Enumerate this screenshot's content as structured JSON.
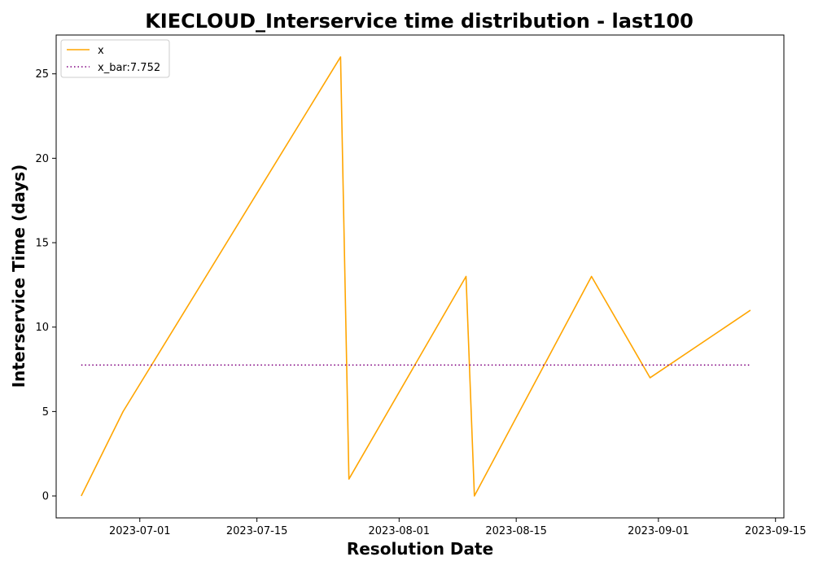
{
  "chart_data": {
    "type": "line",
    "title": "KIECLOUD_Interservice time distribution - last100",
    "xlabel": "Resolution Date",
    "ylabel": "Interservice Time (days)",
    "x_ticks": [
      "2023-07-01",
      "2023-07-15",
      "2023-08-01",
      "2023-08-15",
      "2023-09-01",
      "2023-09-15"
    ],
    "y_ticks": [
      "0",
      "5",
      "10",
      "15",
      "20",
      "25"
    ],
    "xlim": [
      "2023-06-21",
      "2023-09-16"
    ],
    "ylim": [
      -1.3,
      27.3
    ],
    "grid": false,
    "legend_position": "top-left",
    "series": [
      {
        "name": "x",
        "color": "#ffa500",
        "style": "solid",
        "x": [
          "2023-06-24",
          "2023-06-29",
          "2023-07-25",
          "2023-07-26",
          "2023-08-09",
          "2023-08-10",
          "2023-08-24",
          "2023-08-31",
          "2023-09-12"
        ],
        "y": [
          0,
          5,
          26,
          1,
          13,
          0,
          13,
          7,
          11
        ]
      },
      {
        "name": "x_bar:7.752",
        "color": "#800080",
        "style": "dotted",
        "x": [
          "2023-06-24",
          "2023-09-12"
        ],
        "y": [
          7.752,
          7.752
        ]
      }
    ]
  }
}
